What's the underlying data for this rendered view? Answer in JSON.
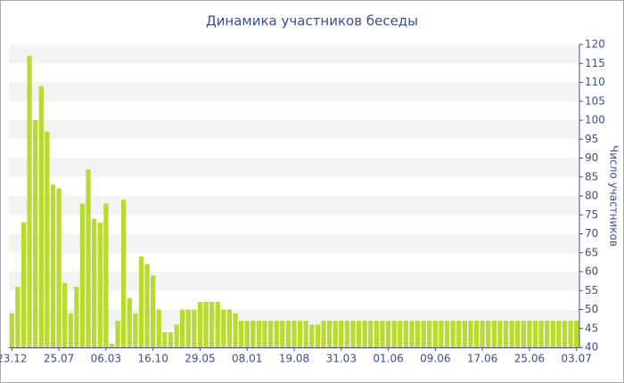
{
  "chart_data": {
    "type": "bar",
    "title": "Динамика участников беседы",
    "y_label": "Число участников",
    "categories": [
      "23.12",
      null,
      null,
      null,
      null,
      null,
      null,
      null,
      "25.07",
      null,
      null,
      null,
      null,
      null,
      null,
      null,
      "06.03",
      null,
      null,
      null,
      null,
      null,
      null,
      null,
      "16.10",
      null,
      null,
      null,
      null,
      null,
      null,
      null,
      "29.05",
      null,
      null,
      null,
      null,
      null,
      null,
      null,
      "08.01",
      null,
      null,
      null,
      null,
      null,
      null,
      null,
      "19.08",
      null,
      null,
      null,
      null,
      null,
      null,
      null,
      "31.03",
      null,
      null,
      null,
      null,
      null,
      null,
      null,
      "01.06",
      null,
      null,
      null,
      null,
      null,
      null,
      null,
      "09.06",
      null,
      null,
      null,
      null,
      null,
      null,
      null,
      "17.06",
      null,
      null,
      null,
      null,
      null,
      null,
      null,
      "25.06",
      null,
      null,
      null,
      null,
      null,
      null,
      null,
      "03.07"
    ],
    "values": [
      49,
      56,
      73,
      117,
      100,
      109,
      97,
      83,
      82,
      57,
      49,
      56,
      78,
      87,
      74,
      73,
      78,
      41,
      47,
      79,
      53,
      49,
      64,
      62,
      59,
      50,
      44,
      44,
      46,
      50,
      50,
      50,
      52,
      52,
      52,
      52,
      50,
      50,
      49,
      47,
      47,
      47,
      47,
      47,
      47,
      47,
      47,
      47,
      47,
      47,
      47,
      46,
      46,
      47,
      47,
      47,
      47,
      47,
      47,
      47,
      47,
      47,
      47,
      47,
      47,
      47,
      47,
      47,
      47,
      47,
      47,
      47,
      47,
      47,
      47,
      47,
      47,
      47,
      47,
      47,
      47,
      47,
      47,
      47,
      47,
      47,
      47,
      47,
      47,
      47,
      47,
      47,
      47,
      47,
      47,
      47,
      47
    ],
    "color": "#b9da2e",
    "ylim": [
      40,
      120
    ],
    "yticks": [
      40,
      45,
      50,
      55,
      60,
      65,
      70,
      75,
      80,
      85,
      90,
      95,
      100,
      105,
      110,
      115,
      120
    ],
    "grid": true,
    "y_axis_side": "right"
  }
}
